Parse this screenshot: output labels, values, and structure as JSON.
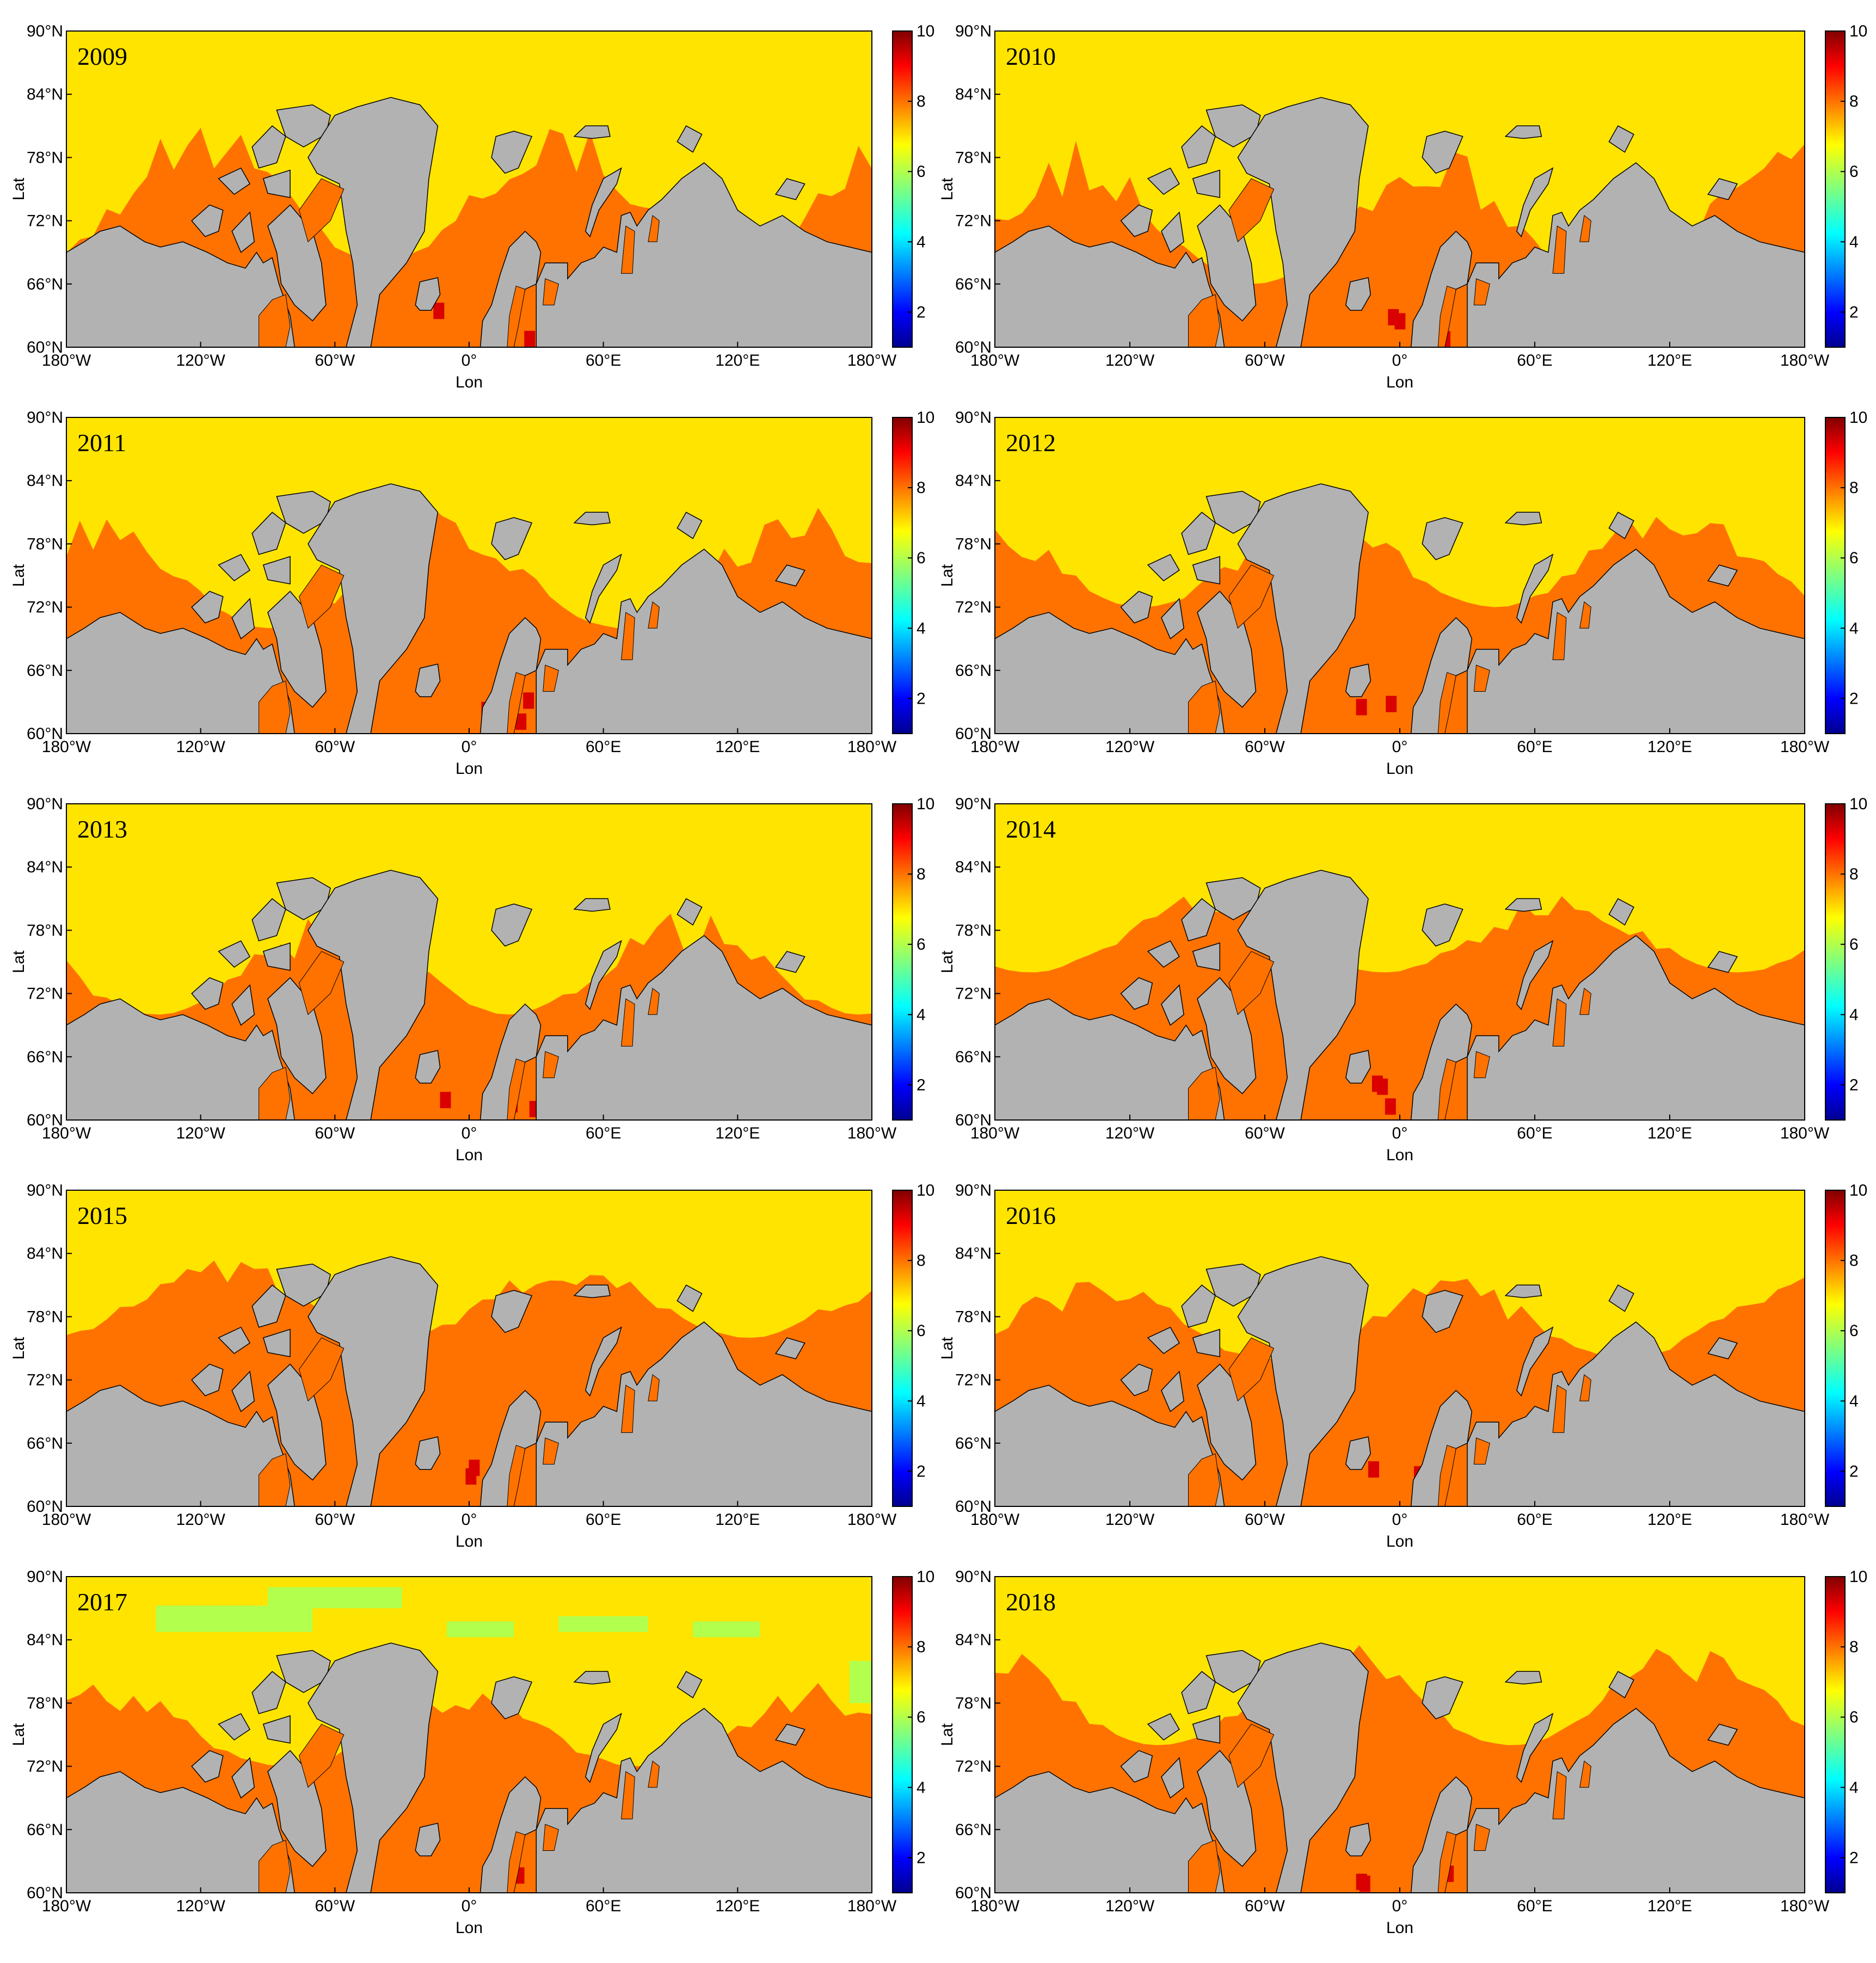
{
  "chart_data": [
    {
      "type": "heatmap",
      "title": "2009",
      "xlabel": "Lon",
      "ylabel": "Lat",
      "x_ticks": [
        "180°W",
        "120°W",
        "60°W",
        "0°",
        "60°E",
        "120°E",
        "180°W"
      ],
      "y_ticks": [
        "60°N",
        "66°N",
        "72°N",
        "78°N",
        "84°N",
        "90°N"
      ],
      "colorbar": {
        "range": [
          1,
          10
        ],
        "ticks": [
          "2",
          "4",
          "6",
          "8",
          "10"
        ],
        "colormap": "jet"
      },
      "land_color": "#b2b2b2",
      "base_value": 7,
      "ice_edge_lat_range": [
        68,
        82
      ],
      "elevated_value": 8,
      "grid": false
    },
    {
      "type": "heatmap",
      "title": "2010",
      "xlabel": "Lon",
      "ylabel": "Lat",
      "x_ticks": [
        "180°W",
        "120°W",
        "60°W",
        "0°",
        "60°E",
        "120°E",
        "180°W"
      ],
      "y_ticks": [
        "60°N",
        "66°N",
        "72°N",
        "78°N",
        "84°N",
        "90°N"
      ],
      "colorbar": {
        "range": [
          1,
          10
        ],
        "ticks": [
          "2",
          "4",
          "6",
          "8",
          "10"
        ],
        "colormap": "jet"
      },
      "land_color": "#b2b2b2",
      "base_value": 7,
      "ice_edge_lat_range": [
        66,
        80
      ],
      "elevated_value": 8,
      "grid": false
    },
    {
      "type": "heatmap",
      "title": "2011",
      "xlabel": "Lon",
      "ylabel": "Lat",
      "x_ticks": [
        "180°W",
        "120°W",
        "60°W",
        "0°",
        "60°E",
        "120°E",
        "180°W"
      ],
      "y_ticks": [
        "60°N",
        "66°N",
        "72°N",
        "78°N",
        "84°N",
        "90°N"
      ],
      "colorbar": {
        "range": [
          1,
          10
        ],
        "ticks": [
          "2",
          "4",
          "6",
          "8",
          "10"
        ],
        "colormap": "jet"
      },
      "land_color": "#b2b2b2",
      "base_value": 7,
      "ice_edge_lat_range": [
        70,
        82
      ],
      "elevated_value": 8,
      "grid": false
    },
    {
      "type": "heatmap",
      "title": "2012",
      "xlabel": "Lon",
      "ylabel": "Lat",
      "x_ticks": [
        "180°W",
        "120°W",
        "60°W",
        "0°",
        "60°E",
        "120°E",
        "180°W"
      ],
      "y_ticks": [
        "60°N",
        "66°N",
        "72°N",
        "78°N",
        "84°N",
        "90°N"
      ],
      "colorbar": {
        "range": [
          1,
          10
        ],
        "ticks": [
          "2",
          "4",
          "6",
          "8",
          "10"
        ],
        "colormap": "jet"
      },
      "land_color": "#b2b2b2",
      "base_value": 7,
      "ice_edge_lat_range": [
        72,
        82
      ],
      "elevated_value": 8,
      "grid": false
    },
    {
      "type": "heatmap",
      "title": "2013",
      "xlabel": "Lon",
      "ylabel": "Lat",
      "x_ticks": [
        "180°W",
        "120°W",
        "60°W",
        "0°",
        "60°E",
        "120°E",
        "180°W"
      ],
      "y_ticks": [
        "60°N",
        "66°N",
        "72°N",
        "78°N",
        "84°N",
        "90°N"
      ],
      "colorbar": {
        "range": [
          1,
          10
        ],
        "ticks": [
          "2",
          "4",
          "6",
          "8",
          "10"
        ],
        "colormap": "jet"
      },
      "land_color": "#b2b2b2",
      "base_value": 7,
      "ice_edge_lat_range": [
        70,
        80
      ],
      "elevated_value": 8,
      "grid": false
    },
    {
      "type": "heatmap",
      "title": "2014",
      "xlabel": "Lon",
      "ylabel": "Lat",
      "x_ticks": [
        "180°W",
        "120°W",
        "60°W",
        "0°",
        "60°E",
        "120°E",
        "180°W"
      ],
      "y_ticks": [
        "60°N",
        "66°N",
        "72°N",
        "78°N",
        "84°N",
        "90°N"
      ],
      "colorbar": {
        "range": [
          1,
          10
        ],
        "ticks": [
          "2",
          "4",
          "6",
          "8",
          "10"
        ],
        "colormap": "jet"
      },
      "land_color": "#b2b2b2",
      "base_value": 7,
      "ice_edge_lat_range": [
        74,
        82
      ],
      "elevated_value": 8,
      "grid": false
    },
    {
      "type": "heatmap",
      "title": "2015",
      "xlabel": "Lon",
      "ylabel": "Lat",
      "x_ticks": [
        "180°W",
        "120°W",
        "60°W",
        "0°",
        "60°E",
        "120°E",
        "180°W"
      ],
      "y_ticks": [
        "60°N",
        "66°N",
        "72°N",
        "78°N",
        "84°N",
        "90°N"
      ],
      "colorbar": {
        "range": [
          1,
          10
        ],
        "ticks": [
          "2",
          "4",
          "6",
          "8",
          "10"
        ],
        "colormap": "jet"
      },
      "land_color": "#b2b2b2",
      "base_value": 7,
      "ice_edge_lat_range": [
        76,
        84
      ],
      "elevated_value": 8,
      "grid": false
    },
    {
      "type": "heatmap",
      "title": "2016",
      "xlabel": "Lon",
      "ylabel": "Lat",
      "x_ticks": [
        "180°W",
        "120°W",
        "60°W",
        "0°",
        "60°E",
        "120°E",
        "180°W"
      ],
      "y_ticks": [
        "60°N",
        "66°N",
        "72°N",
        "78°N",
        "84°N",
        "90°N"
      ],
      "colorbar": {
        "range": [
          1,
          10
        ],
        "ticks": [
          "2",
          "4",
          "6",
          "8",
          "10"
        ],
        "colormap": "jet"
      },
      "land_color": "#b2b2b2",
      "base_value": 7,
      "ice_edge_lat_range": [
        74,
        82
      ],
      "elevated_value": 8,
      "grid": false
    },
    {
      "type": "heatmap",
      "title": "2017",
      "xlabel": "Lon",
      "ylabel": "Lat",
      "x_ticks": [
        "180°W",
        "120°W",
        "60°W",
        "0°",
        "60°E",
        "120°E",
        "180°W"
      ],
      "y_ticks": [
        "60°N",
        "66°N",
        "72°N",
        "78°N",
        "84°N",
        "90°N"
      ],
      "colorbar": {
        "range": [
          1,
          10
        ],
        "ticks": [
          "2",
          "4",
          "6",
          "8",
          "10"
        ],
        "colormap": "jet"
      },
      "land_color": "#b2b2b2",
      "base_value": 7,
      "ice_edge_lat_range": [
        72,
        80
      ],
      "elevated_value": 8,
      "low_value_patches": 6,
      "grid": false
    },
    {
      "type": "heatmap",
      "title": "2018",
      "xlabel": "Lon",
      "ylabel": "Lat",
      "x_ticks": [
        "180°W",
        "120°W",
        "60°W",
        "0°",
        "60°E",
        "120°E",
        "180°W"
      ],
      "y_ticks": [
        "60°N",
        "66°N",
        "72°N",
        "78°N",
        "84°N",
        "90°N"
      ],
      "colorbar": {
        "range": [
          1,
          10
        ],
        "ticks": [
          "2",
          "4",
          "6",
          "8",
          "10"
        ],
        "colormap": "jet"
      },
      "land_color": "#b2b2b2",
      "base_value": 7,
      "ice_edge_lat_range": [
        74,
        84
      ],
      "elevated_value": 8,
      "grid": false
    }
  ]
}
